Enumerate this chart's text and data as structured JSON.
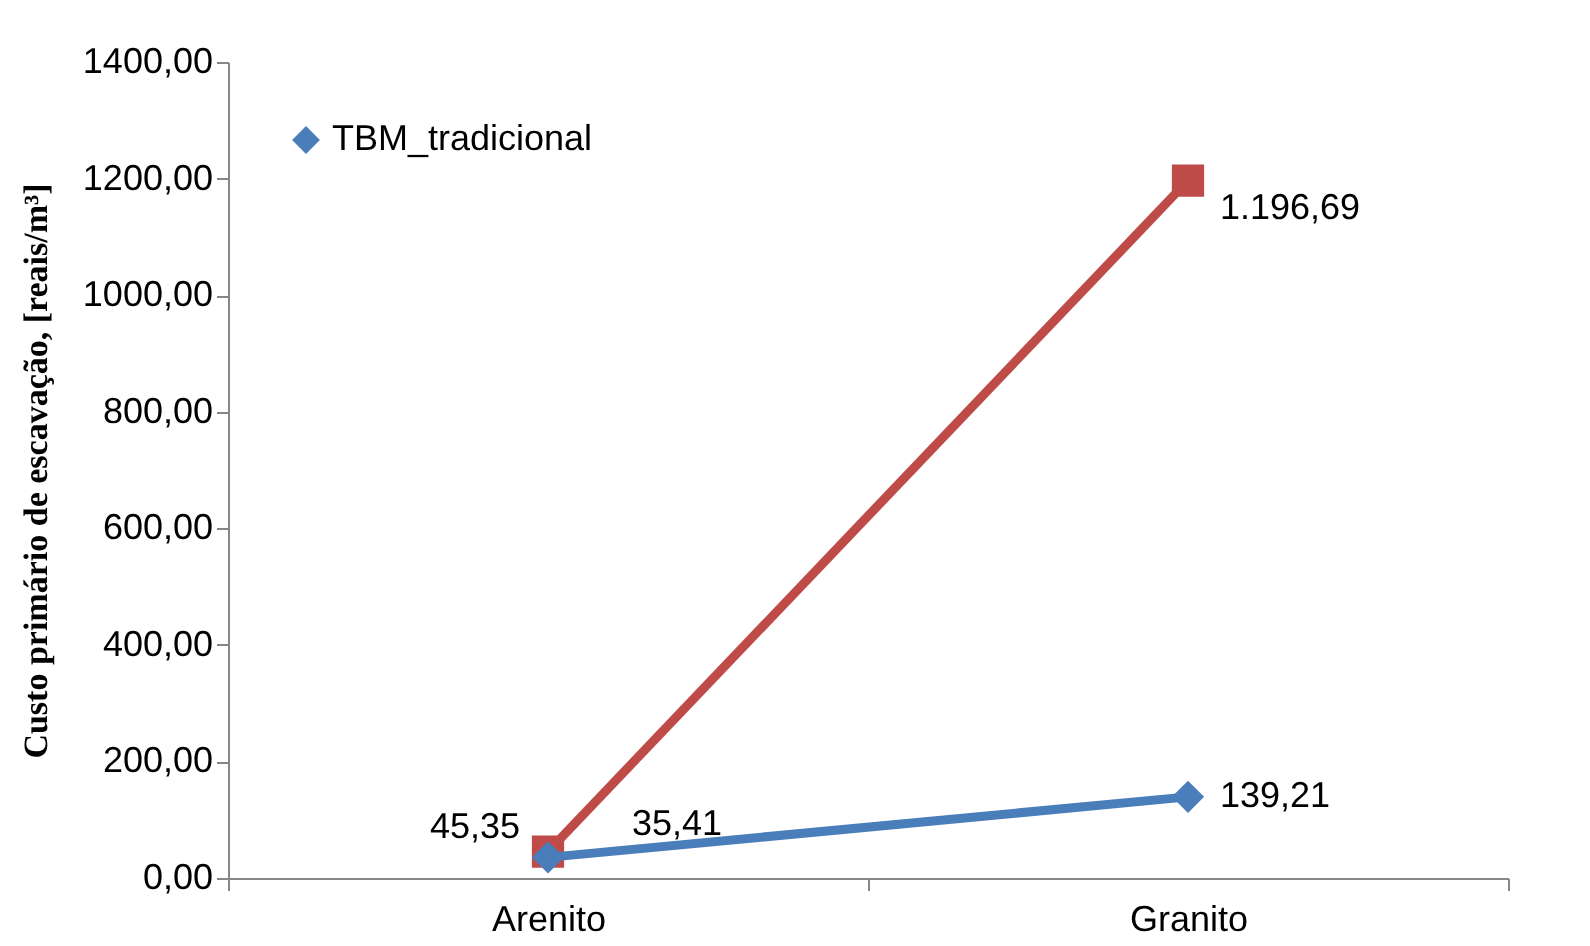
{
  "chart_data": {
    "type": "line",
    "ylabel": "Custo primário de escavação, [reais/m³]",
    "categories": [
      "Arenito",
      "Granito"
    ],
    "series": [
      {
        "name": "TBM_tradicional",
        "color": "#4a7ebb",
        "marker": "diamond",
        "values": [
          35.41,
          139.21
        ],
        "value_labels": [
          "35,41",
          "139,21"
        ]
      },
      {
        "color": "#be4b48",
        "marker": "square",
        "values": [
          45.35,
          1196.69
        ],
        "value_labels": [
          "45,35",
          "1.196,69"
        ]
      }
    ],
    "ylim": [
      0,
      1400
    ],
    "yticks": [
      {
        "value": 0,
        "label": "0,00"
      },
      {
        "value": 200,
        "label": "200,00"
      },
      {
        "value": 400,
        "label": "400,00"
      },
      {
        "value": 600,
        "label": "600,00"
      },
      {
        "value": 800,
        "label": "800,00"
      },
      {
        "value": 1000,
        "label": "1000,00"
      },
      {
        "value": 1200,
        "label": "1200,00"
      },
      {
        "value": 1400,
        "label": "1400,00"
      }
    ],
    "grid": false,
    "legend": "top left",
    "line_style": "solid"
  }
}
